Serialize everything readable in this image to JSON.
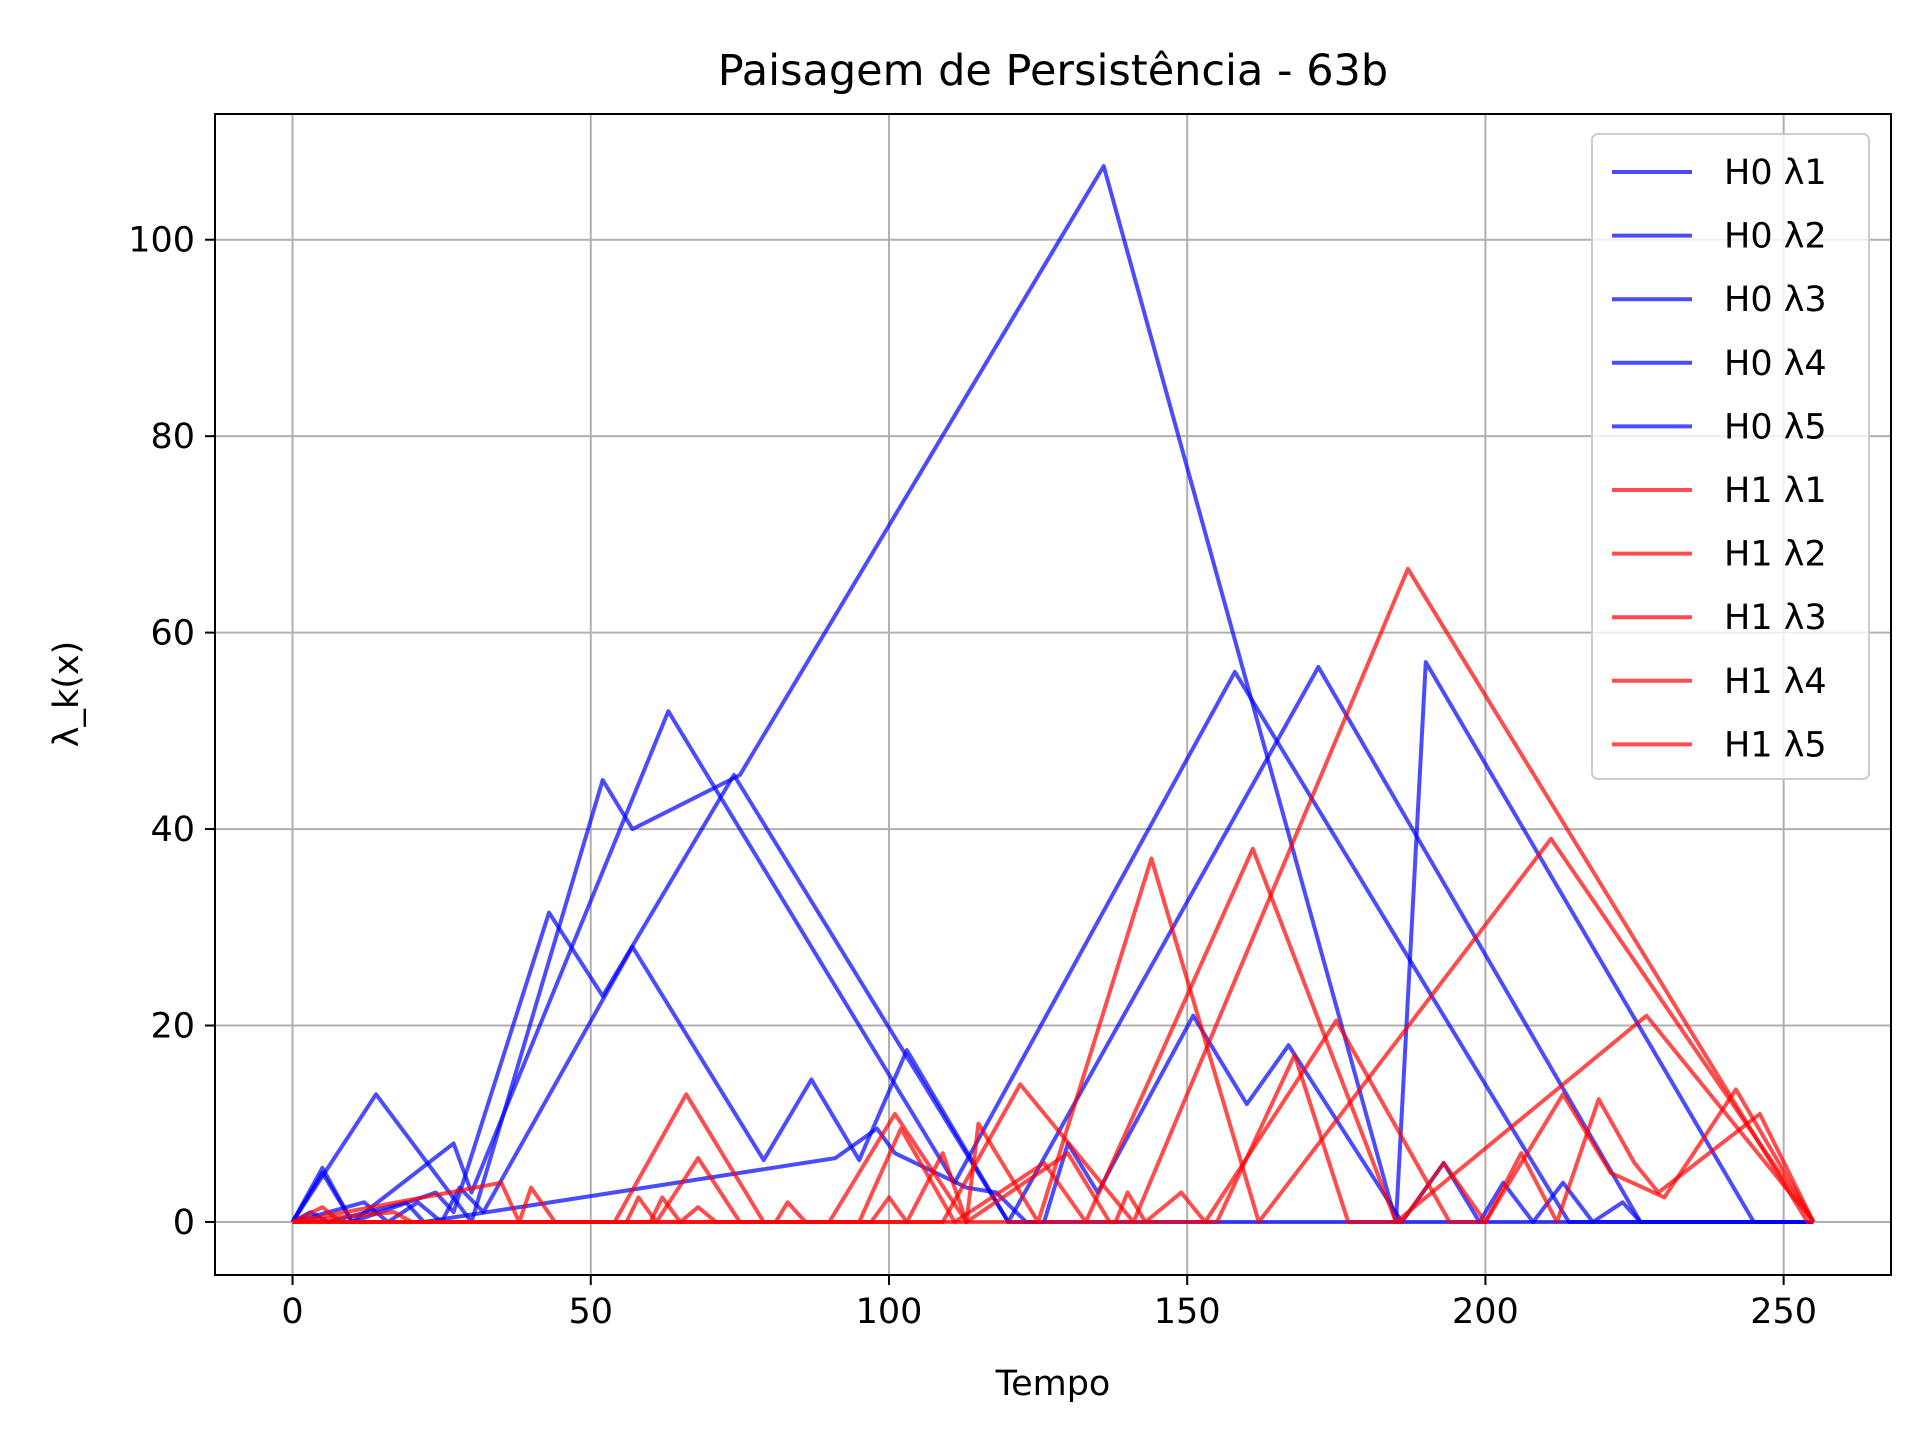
{
  "chart_data": {
    "type": "line",
    "title": "Paisagem de Persistência - 63b",
    "xlabel": "Tempo",
    "ylabel": "λ_k(x)",
    "xlim": [
      -13,
      268
    ],
    "ylim": [
      -5.4,
      112.8
    ],
    "xticks": [
      0,
      50,
      100,
      150,
      200,
      250
    ],
    "yticks": [
      0,
      20,
      40,
      60,
      80,
      100
    ],
    "grid": true,
    "legend_position": "upper right",
    "colors": {
      "H0": "#0000ff",
      "H1": "#ff0000"
    },
    "series": [
      {
        "name": "H0 λ1",
        "color": "#0000ff",
        "points": [
          [
            0,
            0
          ],
          [
            14,
            13
          ],
          [
            30,
            0
          ],
          [
            52,
            45
          ],
          [
            57,
            40
          ],
          [
            75,
            45.5
          ],
          [
            136,
            107.5
          ],
          [
            185,
            0
          ],
          [
            190,
            57
          ],
          [
            245,
            0
          ],
          [
            255,
            0
          ]
        ]
      },
      {
        "name": "H0 λ2",
        "color": "#0000ff",
        "points": [
          [
            0,
            0
          ],
          [
            5,
            5.5
          ],
          [
            10,
            0
          ],
          [
            27,
            8
          ],
          [
            30,
            3
          ],
          [
            63,
            52
          ],
          [
            111,
            4
          ],
          [
            158,
            56
          ],
          [
            214,
            0
          ],
          [
            255,
            0
          ]
        ]
      },
      {
        "name": "H0 λ3",
        "color": "#0000ff",
        "points": [
          [
            0,
            0
          ],
          [
            5,
            5
          ],
          [
            10,
            0
          ],
          [
            24,
            3
          ],
          [
            27,
            1
          ],
          [
            43,
            31.5
          ],
          [
            52,
            23
          ],
          [
            74,
            45.5
          ],
          [
            120,
            0
          ],
          [
            172,
            56.5
          ],
          [
            226,
            0
          ],
          [
            255,
            0
          ]
        ]
      },
      {
        "name": "H0 λ4",
        "color": "#0000ff",
        "points": [
          [
            0,
            0
          ],
          [
            12,
            2
          ],
          [
            16,
            0
          ],
          [
            21,
            2
          ],
          [
            25,
            0
          ],
          [
            28,
            3.5
          ],
          [
            32,
            1
          ],
          [
            57,
            28
          ],
          [
            79,
            6.3
          ],
          [
            87,
            14.5
          ],
          [
            95,
            6.3
          ],
          [
            103,
            17.5
          ],
          [
            120,
            0
          ],
          [
            126,
            0
          ],
          [
            130,
            8
          ],
          [
            135,
            3
          ],
          [
            151,
            21
          ],
          [
            160,
            12
          ],
          [
            167,
            18
          ],
          [
            186,
            0
          ],
          [
            193,
            6
          ],
          [
            199,
            0
          ],
          [
            203,
            4
          ],
          [
            208,
            0
          ],
          [
            213,
            4
          ],
          [
            218,
            0
          ],
          [
            223,
            2
          ],
          [
            226,
            0
          ],
          [
            255,
            0
          ]
        ]
      },
      {
        "name": "H0 λ5",
        "color": "#0000ff",
        "points": [
          [
            0,
            0
          ],
          [
            3,
            1
          ],
          [
            6,
            0
          ],
          [
            19,
            2
          ],
          [
            22,
            0
          ],
          [
            91,
            6.5
          ],
          [
            98,
            9.5
          ],
          [
            101,
            7
          ],
          [
            113,
            3.5
          ],
          [
            118,
            3
          ],
          [
            123,
            0
          ],
          [
            255,
            0
          ]
        ]
      },
      {
        "name": "H1 λ1",
        "color": "#ff0000",
        "points": [
          [
            0,
            0
          ],
          [
            109,
            0
          ],
          [
            122,
            14
          ],
          [
            141,
            0
          ],
          [
            187,
            66.5
          ],
          [
            254,
            0
          ],
          [
            255,
            0
          ]
        ]
      },
      {
        "name": "H1 λ2",
        "color": "#ff0000",
        "points": [
          [
            0,
            0
          ],
          [
            35,
            4
          ],
          [
            38,
            0
          ],
          [
            40,
            3.5
          ],
          [
            44,
            0
          ],
          [
            90,
            0
          ],
          [
            101,
            11
          ],
          [
            113,
            0
          ],
          [
            115,
            10
          ],
          [
            125,
            0
          ],
          [
            144,
            37
          ],
          [
            162,
            0
          ],
          [
            211,
            39
          ],
          [
            255,
            0
          ]
        ]
      },
      {
        "name": "H1 λ3",
        "color": "#ff0000",
        "points": [
          [
            0,
            0
          ],
          [
            5,
            1.5
          ],
          [
            8,
            0
          ],
          [
            54,
            0
          ],
          [
            66,
            13
          ],
          [
            79,
            0
          ],
          [
            95,
            0
          ],
          [
            102,
            9.5
          ],
          [
            111,
            0
          ],
          [
            126,
            6
          ],
          [
            133,
            0
          ],
          [
            161,
            38
          ],
          [
            185,
            0
          ],
          [
            227,
            21
          ],
          [
            255,
            0
          ]
        ]
      },
      {
        "name": "H1 λ4",
        "color": "#ff0000",
        "points": [
          [
            0,
            0
          ],
          [
            56,
            0
          ],
          [
            58,
            2.5
          ],
          [
            61,
            0
          ],
          [
            68,
            6.5
          ],
          [
            75,
            0
          ],
          [
            97,
            0
          ],
          [
            100,
            2.5
          ],
          [
            103,
            0
          ],
          [
            109,
            7
          ],
          [
            113,
            0
          ],
          [
            130,
            7
          ],
          [
            137,
            0
          ],
          [
            145,
            0
          ],
          [
            155,
            0
          ],
          [
            168,
            17
          ],
          [
            177,
            0
          ],
          [
            186,
            0
          ],
          [
            193,
            6
          ],
          [
            200,
            0
          ],
          [
            213,
            13
          ],
          [
            221,
            5
          ],
          [
            230,
            2.5
          ],
          [
            242,
            13.5
          ],
          [
            255,
            0
          ]
        ]
      },
      {
        "name": "H1 λ5",
        "color": "#ff0000",
        "points": [
          [
            0,
            0
          ],
          [
            17,
            1
          ],
          [
            20,
            0
          ],
          [
            60,
            0
          ],
          [
            62,
            2.5
          ],
          [
            65,
            0
          ],
          [
            68,
            1.5
          ],
          [
            71,
            0
          ],
          [
            81,
            0
          ],
          [
            83,
            2
          ],
          [
            86,
            0
          ],
          [
            138,
            0
          ],
          [
            140,
            3
          ],
          [
            143,
            0
          ],
          [
            149,
            3
          ],
          [
            153,
            0
          ],
          [
            175,
            20.5
          ],
          [
            194,
            0
          ],
          [
            200,
            0
          ],
          [
            206,
            7
          ],
          [
            212,
            0
          ],
          [
            219,
            12.5
          ],
          [
            225,
            6
          ],
          [
            229,
            3
          ],
          [
            246,
            11
          ],
          [
            255,
            0
          ]
        ]
      }
    ]
  }
}
